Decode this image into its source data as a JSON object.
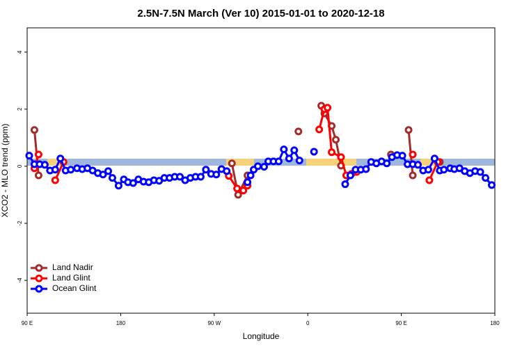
{
  "chart_data": {
    "type": "line",
    "title": "2.5N-7.5N March (Ver 10)   2015-01-01 to 2020-12-18",
    "x_label": "Longitude",
    "y_label": "XCO2 - MLO trend (ppm)",
    "xlim": [
      90,
      540
    ],
    "ylim": [
      -5.15,
      4.85
    ],
    "xticks": [
      {
        "value": 90,
        "label": "90 E"
      },
      {
        "value": 180,
        "label": "180"
      },
      {
        "value": 270,
        "label": "90 W"
      },
      {
        "value": 360,
        "label": "0"
      },
      {
        "value": 450,
        "label": "90 E"
      },
      {
        "value": 540,
        "label": "180"
      }
    ],
    "yticks": [
      -4,
      -2,
      0,
      2,
      4
    ],
    "legend": "bottom-left",
    "series": [
      {
        "name": "Land Nadir",
        "color": "#a52a2a",
        "x": [
          97,
          101,
          110,
          287,
          293,
          302,
          320,
          351,
          362,
          373,
          376,
          383,
          387,
          392,
          415,
          440,
          450,
          457,
          461,
          475,
          487
        ],
        "values": [
          1.27,
          -0.32,
          null,
          0.1,
          -1.0,
          -0.32,
          null,
          1.22,
          null,
          2.12,
          1.85,
          1.41,
          0.93,
          0.02,
          null,
          0.41,
          null,
          1.27,
          -0.32,
          null,
          0.15
        ]
      },
      {
        "name": "Land Glint",
        "color": "#ff0000",
        "x": [
          97,
          101,
          110,
          117,
          125,
          200,
          284,
          292,
          298,
          302,
          340,
          371,
          376,
          379,
          383,
          392,
          397,
          402,
          407,
          430,
          461,
          470,
          477,
          485
        ],
        "values": [
          -0.07,
          0.41,
          null,
          -0.49,
          0.15,
          null,
          -0.34,
          -0.78,
          -0.85,
          -0.68,
          null,
          1.29,
          2.0,
          2.05,
          0.49,
          0.32,
          -0.32,
          -0.27,
          -0.2,
          null,
          0.41,
          null,
          -0.49,
          0.15
        ]
      },
      {
        "name": "Ocean Glint",
        "color": "#0000ff",
        "x": [
          92,
          97,
          102,
          107,
          112,
          117,
          122,
          127,
          132,
          138,
          143,
          148,
          153,
          158,
          163,
          168,
          172,
          178,
          183,
          187,
          192,
          197,
          202,
          207,
          212,
          217,
          222,
          227,
          232,
          237,
          242,
          247,
          252,
          257,
          262,
          267,
          272,
          277,
          282,
          287,
          302,
          305,
          308,
          312,
          318,
          322,
          327,
          332,
          337,
          342,
          347,
          352,
          358,
          366,
          380,
          396,
          401,
          406,
          411,
          416,
          421,
          426,
          431,
          436,
          441,
          446,
          451,
          456,
          461,
          466,
          471,
          476,
          482,
          487,
          491,
          497,
          501,
          506,
          511,
          516,
          521,
          526,
          531,
          537
        ],
        "values": [
          0.37,
          0.07,
          0.07,
          0.05,
          -0.15,
          -0.12,
          0.27,
          -0.15,
          -0.12,
          -0.07,
          -0.1,
          -0.07,
          -0.15,
          -0.24,
          -0.29,
          -0.17,
          -0.41,
          -0.68,
          -0.46,
          -0.56,
          -0.59,
          -0.46,
          -0.54,
          -0.56,
          -0.49,
          -0.51,
          -0.41,
          -0.41,
          -0.37,
          -0.37,
          -0.49,
          -0.41,
          -0.37,
          -0.37,
          -0.12,
          -0.27,
          -0.29,
          -0.1,
          -0.17,
          null,
          -0.56,
          -0.32,
          -0.12,
          0.0,
          -0.02,
          0.17,
          0.17,
          0.17,
          0.59,
          0.27,
          0.56,
          0.2,
          null,
          0.51,
          null,
          -0.63,
          -0.32,
          -0.12,
          -0.12,
          -0.1,
          0.15,
          0.1,
          0.17,
          0.1,
          0.32,
          0.39,
          0.37,
          0.07,
          0.07,
          0.05,
          -0.15,
          -0.12,
          0.27,
          -0.15,
          -0.12,
          -0.07,
          -0.1,
          -0.07,
          -0.17,
          -0.24,
          -0.17,
          -0.2,
          -0.41,
          -0.66
        ]
      }
    ]
  }
}
